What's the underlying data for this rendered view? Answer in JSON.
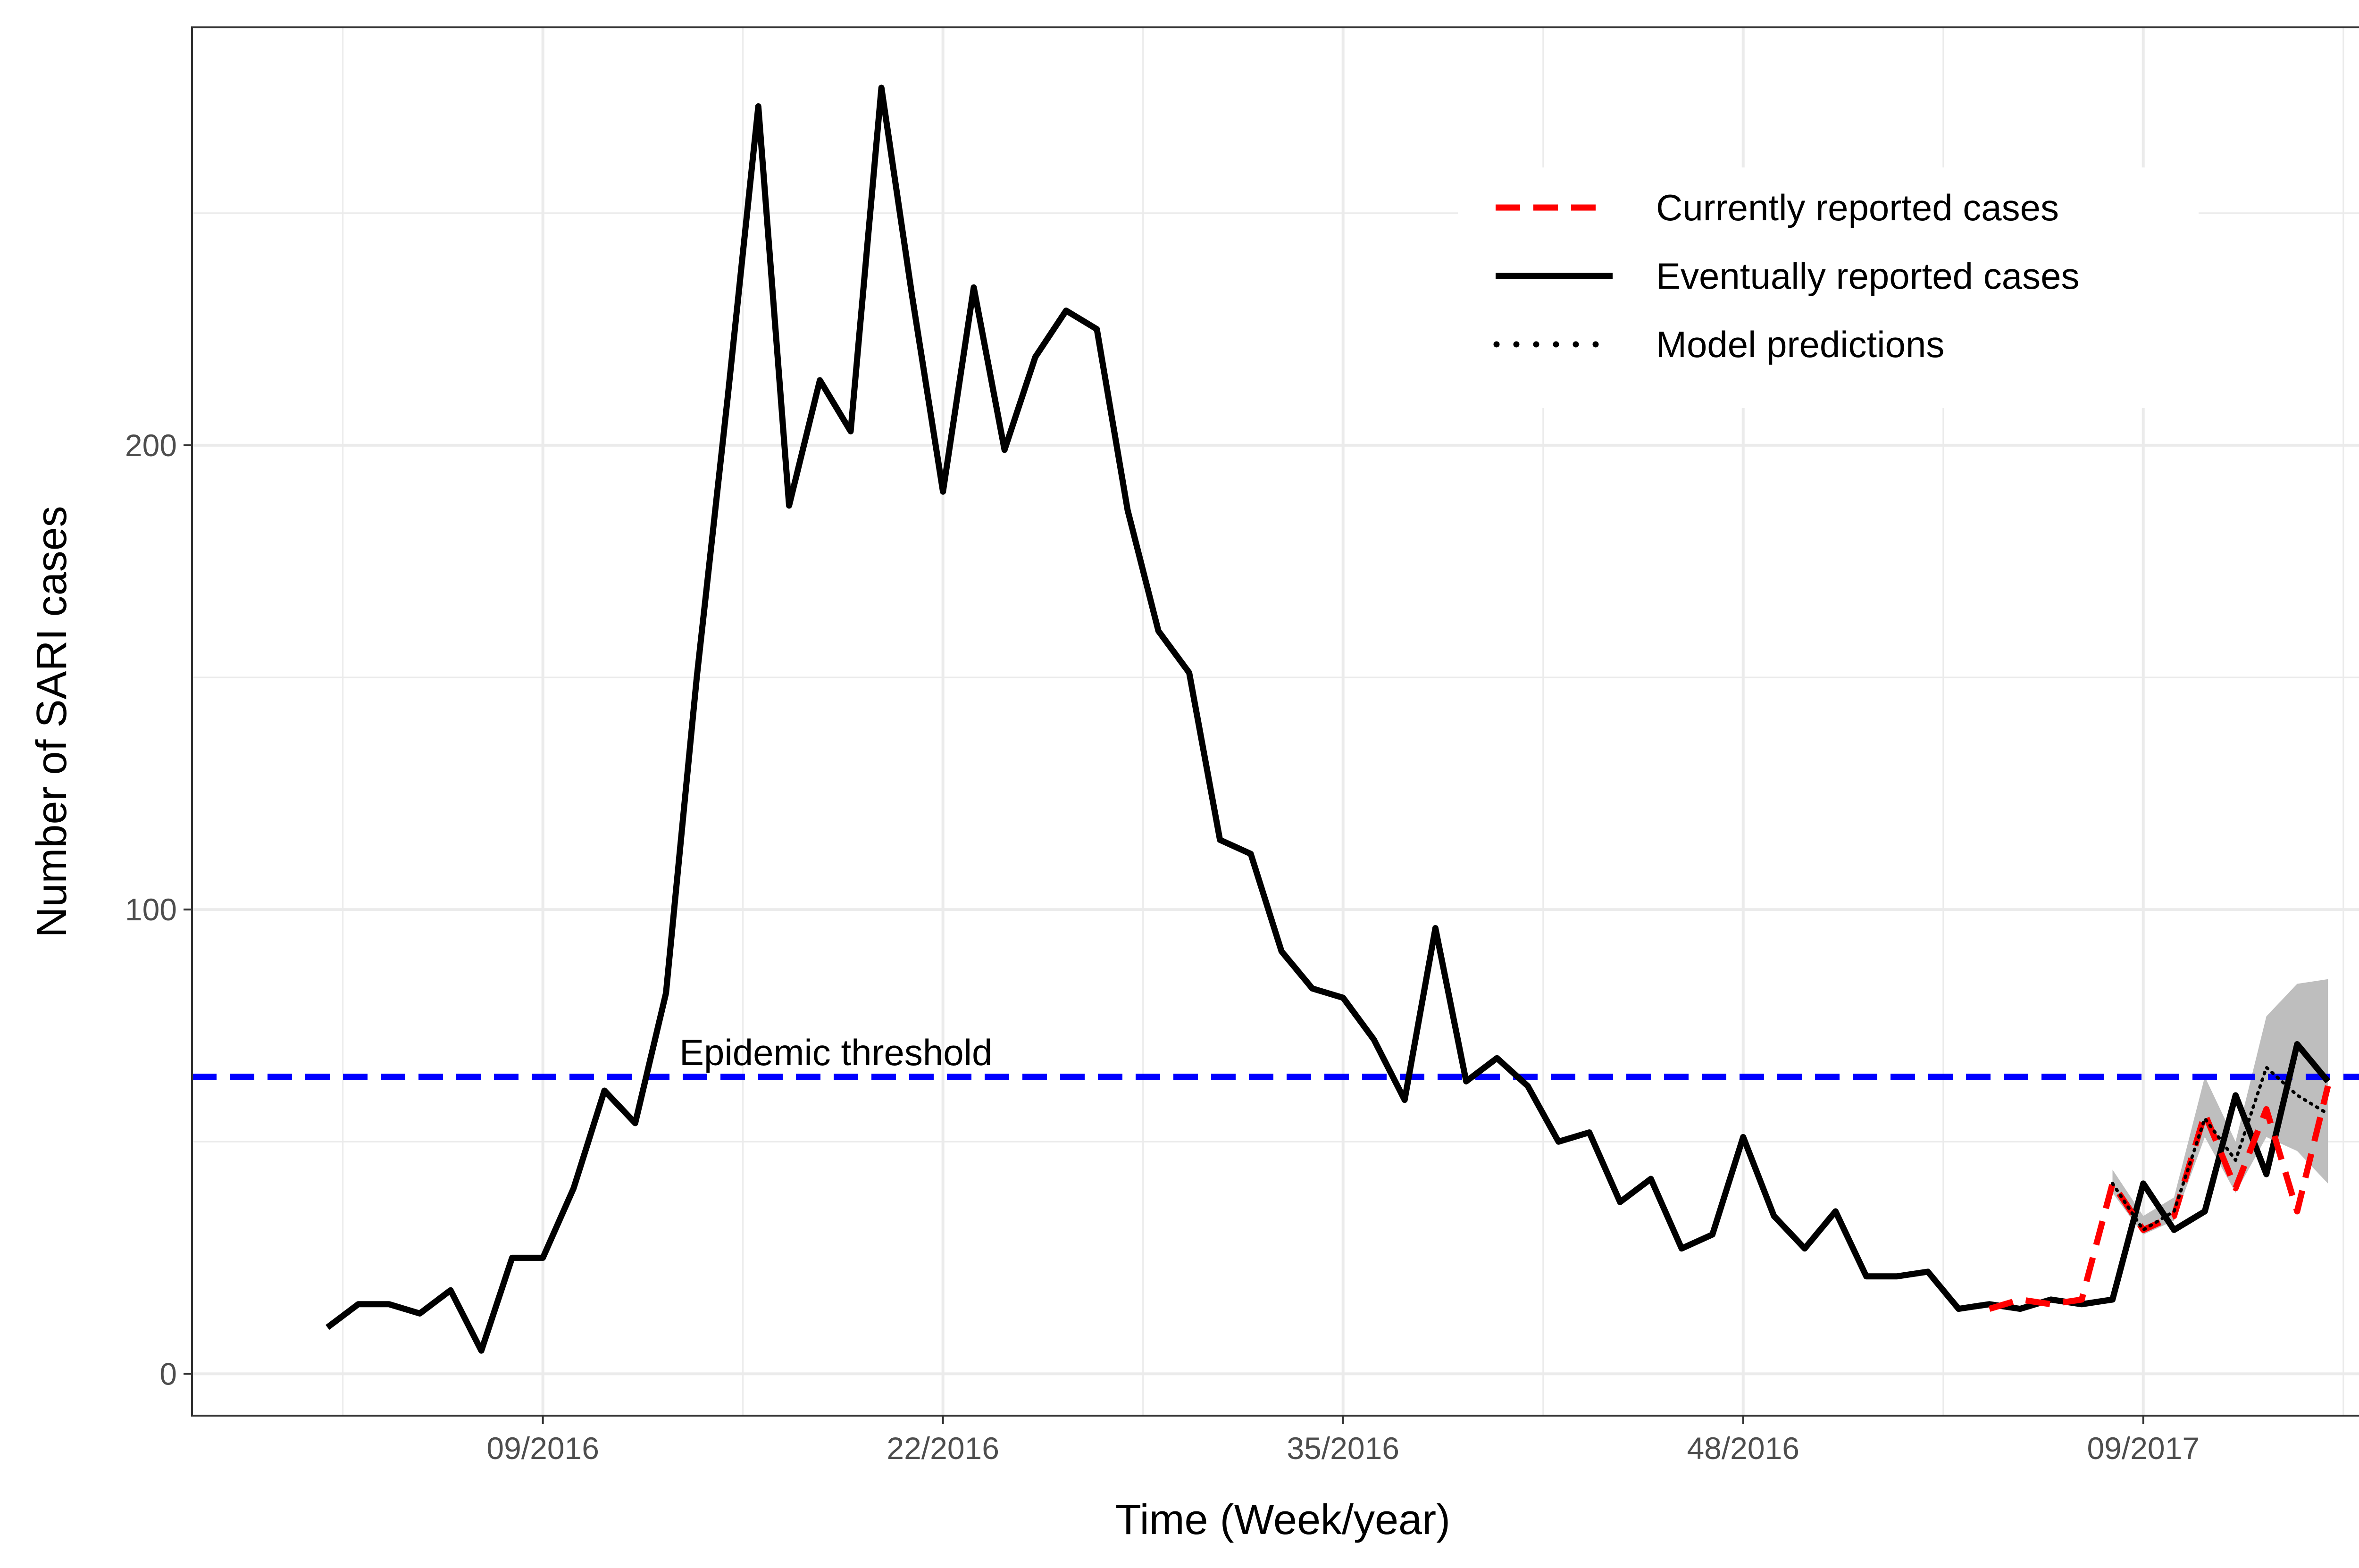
{
  "chart_data": {
    "type": "line",
    "title": "",
    "xlabel": "Time (Week/year)",
    "ylabel": "Number of SARI cases",
    "x_tick_labels": [
      "09/2016",
      "22/2016",
      "35/2016",
      "48/2016",
      "09/2017"
    ],
    "x_tick_weeks": [
      9,
      22,
      35,
      48,
      61
    ],
    "y_ticks": [
      0,
      100,
      200
    ],
    "xlim": [
      -2.4,
      68.5
    ],
    "ylim": [
      -9,
      290
    ],
    "grid": true,
    "legend_position": "top-right",
    "threshold": {
      "label": "Epidemic threshold",
      "value": 64,
      "color": "#0000ff"
    },
    "series": [
      {
        "name": "Eventually reported cases",
        "style": "solid",
        "color": "#000000",
        "x": [
          2,
          3,
          4,
          5,
          6,
          7,
          8,
          9,
          10,
          11,
          12,
          13,
          14,
          15,
          16,
          17,
          18,
          19,
          20,
          21,
          22,
          23,
          24,
          25,
          26,
          27,
          28,
          29,
          30,
          31,
          32,
          33,
          34,
          35,
          36,
          37,
          38,
          39,
          40,
          41,
          42,
          43,
          44,
          45,
          46,
          47,
          48,
          49,
          50,
          51,
          52,
          53,
          54,
          55,
          56,
          57,
          58,
          59,
          60,
          61,
          62,
          63,
          64,
          65,
          66,
          67
        ],
        "values": [
          10,
          15,
          15,
          13,
          18,
          5,
          25,
          25,
          40,
          61,
          54,
          82,
          150,
          210,
          273,
          187,
          214,
          203,
          277,
          232,
          190,
          234,
          199,
          219,
          229,
          225,
          186,
          160,
          151,
          115,
          112,
          91,
          83,
          81,
          72,
          59,
          96,
          63,
          68,
          62,
          50,
          52,
          37,
          42,
          27,
          30,
          51,
          34,
          27,
          35,
          21,
          21,
          22,
          14,
          15,
          14,
          16,
          15,
          16,
          41,
          31,
          35,
          60,
          43,
          71,
          63
        ]
      },
      {
        "name": "Currently reported cases",
        "style": "dashed",
        "color": "#ff0000",
        "x": [
          56,
          57,
          58,
          59,
          60,
          61,
          62,
          63,
          64,
          65,
          66,
          67
        ],
        "values": [
          14,
          16,
          15,
          16,
          41,
          31,
          34,
          56,
          40,
          57,
          35,
          62
        ]
      },
      {
        "name": "Model predictions",
        "style": "dotted",
        "color": "#000000",
        "x": [
          60,
          61,
          62,
          63,
          64,
          65,
          66,
          67
        ],
        "values": [
          41,
          31,
          35,
          55,
          46,
          66,
          60,
          56
        ]
      }
    ],
    "prediction_interval": {
      "x": [
        60,
        61,
        62,
        63,
        64,
        65,
        66,
        67
      ],
      "lower": [
        39,
        30,
        33,
        51,
        39,
        51,
        48,
        41
      ],
      "upper": [
        44,
        34,
        38,
        64,
        50,
        77,
        84,
        85
      ]
    }
  }
}
